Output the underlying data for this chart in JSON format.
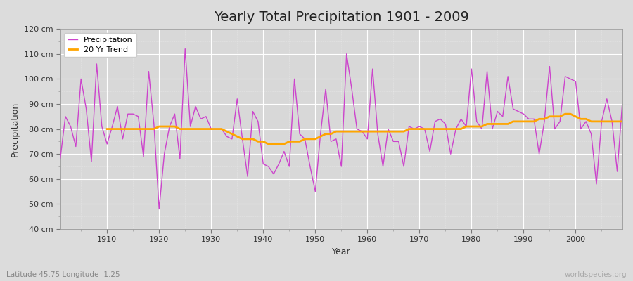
{
  "title": "Yearly Total Precipitation 1901 - 2009",
  "xlabel": "Year",
  "ylabel": "Precipitation",
  "subtitle": "Latitude 45.75 Longitude -1.25",
  "watermark": "worldspecies.org",
  "years": [
    1901,
    1902,
    1903,
    1904,
    1905,
    1906,
    1907,
    1908,
    1909,
    1910,
    1911,
    1912,
    1913,
    1914,
    1915,
    1916,
    1917,
    1918,
    1919,
    1920,
    1921,
    1922,
    1923,
    1924,
    1925,
    1926,
    1927,
    1928,
    1929,
    1930,
    1931,
    1932,
    1933,
    1934,
    1935,
    1936,
    1937,
    1938,
    1939,
    1940,
    1941,
    1942,
    1943,
    1944,
    1945,
    1946,
    1947,
    1948,
    1949,
    1950,
    1951,
    1952,
    1953,
    1954,
    1955,
    1956,
    1957,
    1958,
    1959,
    1960,
    1961,
    1962,
    1963,
    1964,
    1965,
    1966,
    1967,
    1968,
    1969,
    1970,
    1971,
    1972,
    1973,
    1974,
    1975,
    1976,
    1977,
    1978,
    1979,
    1980,
    1981,
    1982,
    1983,
    1984,
    1985,
    1986,
    1987,
    1988,
    1989,
    1990,
    1991,
    1992,
    1993,
    1994,
    1995,
    1996,
    1997,
    1998,
    1999,
    2000,
    2001,
    2002,
    2003,
    2004,
    2005,
    2006,
    2007,
    2008,
    2009
  ],
  "precipitation": [
    68,
    85,
    81,
    73,
    100,
    88,
    67,
    106,
    81,
    74,
    81,
    89,
    76,
    86,
    86,
    85,
    69,
    103,
    82,
    48,
    70,
    81,
    86,
    68,
    112,
    81,
    89,
    84,
    85,
    80,
    80,
    80,
    77,
    76,
    92,
    76,
    61,
    87,
    83,
    66,
    65,
    62,
    66,
    71,
    65,
    100,
    78,
    76,
    65,
    55,
    78,
    96,
    75,
    76,
    65,
    110,
    96,
    80,
    79,
    76,
    104,
    78,
    65,
    80,
    75,
    75,
    65,
    81,
    80,
    81,
    80,
    71,
    83,
    84,
    82,
    70,
    80,
    84,
    81,
    104,
    83,
    80,
    103,
    80,
    87,
    85,
    101,
    88,
    87,
    86,
    84,
    84,
    70,
    83,
    105,
    80,
    83,
    101,
    100,
    99,
    80,
    83,
    78,
    58,
    83,
    92,
    83,
    63,
    91
  ],
  "trend": [
    80,
    80,
    80,
    80,
    80,
    80,
    80,
    80,
    80,
    80,
    81,
    81,
    81,
    81,
    80,
    80,
    80,
    80,
    80,
    80,
    80,
    80,
    80,
    79,
    78,
    77,
    76,
    76,
    76,
    75,
    75,
    74,
    74,
    74,
    74,
    75,
    75,
    75,
    76,
    76,
    76,
    77,
    78,
    78,
    79,
    79,
    79,
    79,
    79,
    79,
    79,
    79,
    79,
    79,
    79,
    79,
    79,
    79,
    80,
    80,
    80,
    80,
    80,
    80,
    80,
    80,
    80,
    80,
    80,
    81,
    81,
    81,
    81,
    82,
    82,
    82,
    82,
    82,
    83,
    83,
    83,
    83,
    83,
    84,
    84,
    85,
    85,
    85,
    86,
    86,
    85,
    84,
    84,
    83,
    83,
    83,
    83,
    83,
    83,
    83
  ],
  "ylim": [
    40,
    120
  ],
  "yticks": [
    40,
    50,
    60,
    70,
    80,
    90,
    100,
    110,
    120
  ],
  "xticks": [
    1910,
    1920,
    1930,
    1940,
    1950,
    1960,
    1970,
    1980,
    1990,
    2000
  ],
  "precip_color": "#CC44CC",
  "trend_color": "#FFA500",
  "fig_bg_color": "#DCDCDC",
  "plot_bg_color": "#D8D8D8",
  "grid_color": "#FFFFFF",
  "title_fontsize": 14,
  "label_fontsize": 9,
  "tick_fontsize": 8,
  "legend_fontsize": 8,
  "subtitle_color": "#888888",
  "watermark_color": "#AAAAAA"
}
